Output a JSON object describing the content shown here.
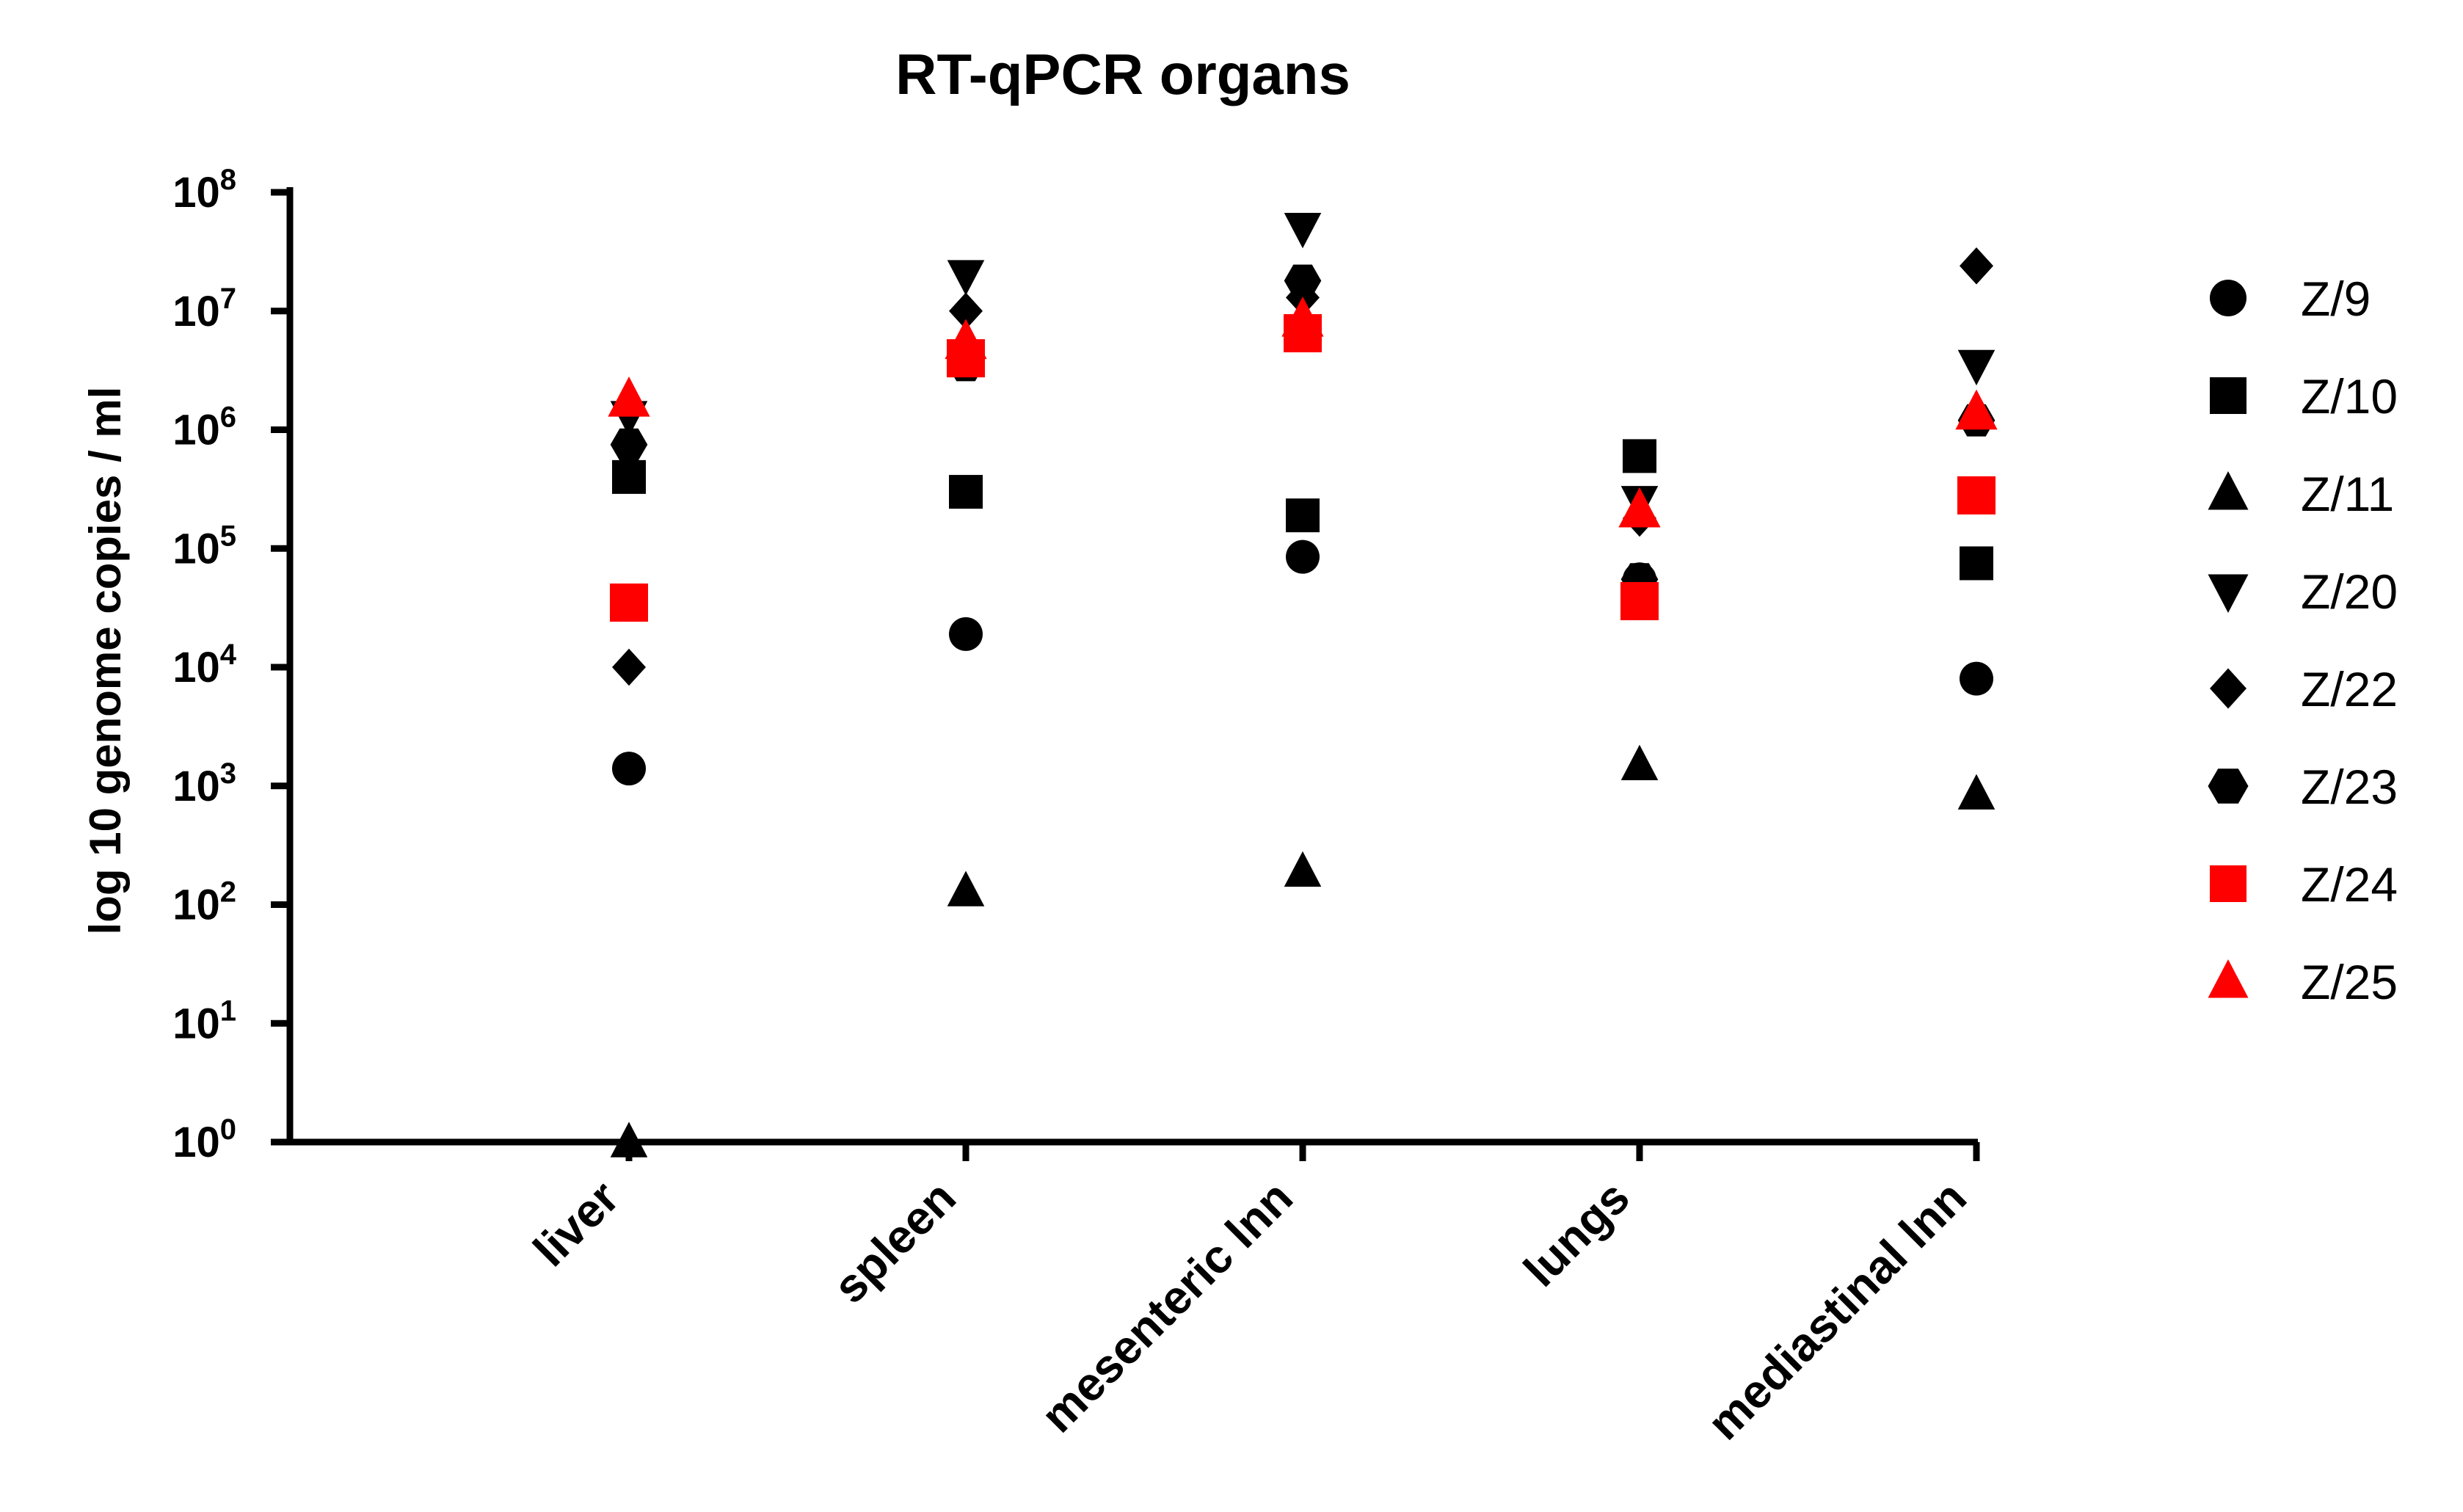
{
  "chart_data": {
    "type": "scatter",
    "title": "RT-qPCR organs",
    "xlabel": "",
    "ylabel": "log 10 genome copies / ml",
    "yscale": "log",
    "ylim": [
      1,
      100000000
    ],
    "yticks": [
      {
        "base": "10",
        "exp": "0",
        "value": 1
      },
      {
        "base": "10",
        "exp": "1",
        "value": 10
      },
      {
        "base": "10",
        "exp": "2",
        "value": 100
      },
      {
        "base": "10",
        "exp": "3",
        "value": 1000
      },
      {
        "base": "10",
        "exp": "4",
        "value": 10000
      },
      {
        "base": "10",
        "exp": "5",
        "value": 100000
      },
      {
        "base": "10",
        "exp": "6",
        "value": 1000000
      },
      {
        "base": "10",
        "exp": "7",
        "value": 10000000
      },
      {
        "base": "10",
        "exp": "8",
        "value": 100000000
      }
    ],
    "categories": [
      "liver",
      "spleen",
      "mesenteric lnn",
      "lungs",
      "mediastinal lnn"
    ],
    "legend_position": "right",
    "series": [
      {
        "name": "Z/9",
        "marker": "circle",
        "color": "#000000",
        "values": [
          1400,
          19000,
          85000,
          55000,
          8000
        ]
      },
      {
        "name": "Z/10",
        "marker": "square",
        "color": "#000000",
        "values": [
          400000,
          300000,
          190000,
          600000,
          75000
        ]
      },
      {
        "name": "Z/11",
        "marker": "triangle-up",
        "color": "#000000",
        "values": [
          1,
          130,
          190,
          1500,
          850
        ]
      },
      {
        "name": "Z/20",
        "marker": "triangle-down",
        "color": "#000000",
        "values": [
          1300000,
          20000000,
          50000000,
          250000,
          3500000
        ]
      },
      {
        "name": "Z/22",
        "marker": "diamond",
        "color": "#000000",
        "values": [
          10000,
          10000000,
          13000000,
          180000,
          24000000
        ]
      },
      {
        "name": "Z/23",
        "marker": "hexagon",
        "color": "#000000",
        "values": [
          750000,
          3500000,
          18000000,
          55000,
          1200000
        ]
      },
      {
        "name": "Z/24",
        "marker": "square",
        "color": "#ff0000",
        "values": [
          35000,
          4000000,
          6500000,
          36000,
          280000
        ]
      },
      {
        "name": "Z/25",
        "marker": "triangle-up",
        "color": "#ff0000",
        "values": [
          1800000,
          5500000,
          8500000,
          210000,
          1400000
        ]
      }
    ]
  }
}
